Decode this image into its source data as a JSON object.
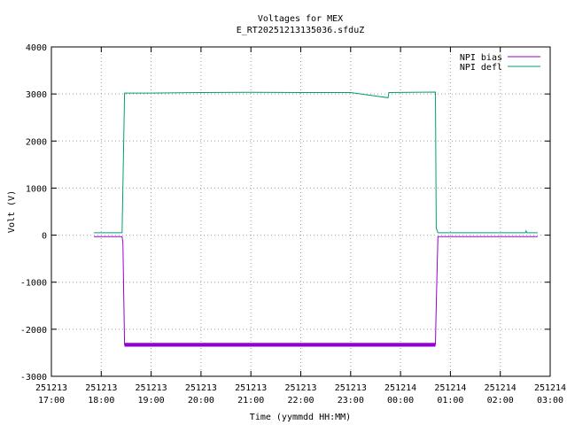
{
  "chart_data": {
    "type": "line",
    "title": "Voltages for MEX",
    "subtitle": "E_RT20251213135036.sfduZ",
    "xlabel": "Time (yymmdd HH:MM)",
    "ylabel": "Volt (V)",
    "ylim": [
      -3000,
      4000
    ],
    "xlim_hours": [
      17,
      27
    ],
    "grid": true,
    "legend_position": "top-right",
    "y_ticks": [
      "-3000",
      "-2000",
      "-1000",
      "0",
      "1000",
      "2000",
      "3000",
      "4000"
    ],
    "x_ticks": [
      {
        "date": "251213",
        "time": "17:00"
      },
      {
        "date": "251213",
        "time": "18:00"
      },
      {
        "date": "251213",
        "time": "19:00"
      },
      {
        "date": "251213",
        "time": "20:00"
      },
      {
        "date": "251213",
        "time": "21:00"
      },
      {
        "date": "251213",
        "time": "22:00"
      },
      {
        "date": "251213",
        "time": "23:00"
      },
      {
        "date": "251214",
        "time": "00:00"
      },
      {
        "date": "251214",
        "time": "01:00"
      },
      {
        "date": "251214",
        "time": "02:00"
      },
      {
        "date": "251214",
        "time": "03:00"
      }
    ],
    "series": [
      {
        "name": "NPI bias",
        "color": "#9400d3",
        "points": [
          [
            "251213 17:51",
            -30
          ],
          [
            "251213 18:25",
            -30
          ],
          [
            "251213 18:26",
            -150
          ],
          [
            "251213 18:28",
            -2330
          ],
          [
            "251213 20:00",
            -2320
          ],
          [
            "251213 22:00",
            -2320
          ],
          [
            "251214 00:00",
            -2320
          ],
          [
            "251214 00:42",
            -2320
          ],
          [
            "251214 00:43",
            -1500
          ],
          [
            "251214 00:45",
            -30
          ],
          [
            "251214 02:45",
            -30
          ]
        ]
      },
      {
        "name": "NPI defl",
        "color": "#009e73",
        "points": [
          [
            "251213 17:51",
            50
          ],
          [
            "251213 18:25",
            50
          ],
          [
            "251213 18:28",
            3020
          ],
          [
            "251213 19:00",
            3020
          ],
          [
            "251213 20:00",
            3030
          ],
          [
            "251213 21:00",
            3035
          ],
          [
            "251213 22:00",
            3030
          ],
          [
            "251213 23:00",
            3030
          ],
          [
            "251213 23:45",
            2920
          ],
          [
            "251213 23:46",
            3030
          ],
          [
            "251214 00:42",
            3040
          ],
          [
            "251214 00:43",
            150
          ],
          [
            "251214 00:44",
            100
          ],
          [
            "251214 00:45",
            50
          ],
          [
            "251214 02:30",
            50
          ],
          [
            "251214 02:31",
            90
          ],
          [
            "251214 02:32",
            50
          ],
          [
            "251214 02:45",
            50
          ]
        ]
      }
    ]
  }
}
